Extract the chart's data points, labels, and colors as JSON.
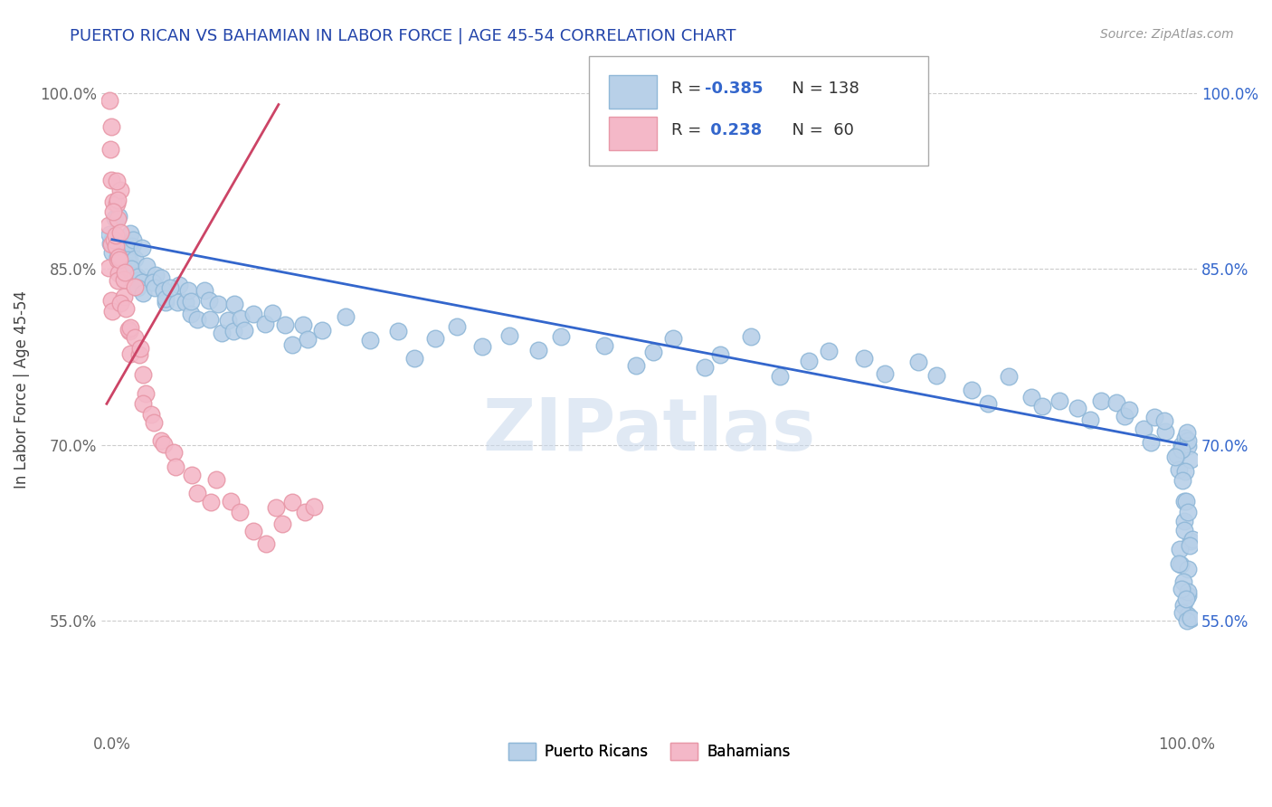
{
  "title": "PUERTO RICAN VS BAHAMIAN IN LABOR FORCE | AGE 45-54 CORRELATION CHART",
  "source_text": "Source: ZipAtlas.com",
  "ylabel": "In Labor Force | Age 45-54",
  "xlim": [
    -0.01,
    1.01
  ],
  "ylim": [
    0.455,
    1.04
  ],
  "yticks": [
    0.55,
    0.7,
    0.85,
    1.0
  ],
  "ytick_labels": [
    "55.0%",
    "70.0%",
    "85.0%",
    "100.0%"
  ],
  "xticks": [
    0.0,
    1.0
  ],
  "xtick_labels": [
    "0.0%",
    "100.0%"
  ],
  "watermark": "ZIPatlas",
  "blue_color": "#b8d0e8",
  "pink_color": "#f4b8c8",
  "blue_edge": "#90b8d8",
  "pink_edge": "#e898a8",
  "blue_line_color": "#3366cc",
  "pink_line_color": "#cc4466",
  "blue_line": {
    "x0": 0.0,
    "x1": 1.0,
    "y0": 0.875,
    "y1": 0.7
  },
  "pink_line": {
    "x0": -0.005,
    "x1": 0.155,
    "y0": 0.735,
    "y1": 0.99
  },
  "blue_scatter_x": [
    0.0,
    0.0,
    0.0,
    0.0,
    0.005,
    0.005,
    0.007,
    0.008,
    0.01,
    0.01,
    0.01,
    0.012,
    0.013,
    0.015,
    0.015,
    0.015,
    0.018,
    0.02,
    0.02,
    0.02,
    0.022,
    0.025,
    0.025,
    0.027,
    0.03,
    0.03,
    0.032,
    0.035,
    0.037,
    0.04,
    0.042,
    0.045,
    0.05,
    0.052,
    0.055,
    0.058,
    0.06,
    0.065,
    0.068,
    0.07,
    0.075,
    0.08,
    0.082,
    0.085,
    0.09,
    0.095,
    0.1,
    0.105,
    0.11,
    0.115,
    0.12,
    0.125,
    0.13,
    0.14,
    0.15,
    0.16,
    0.17,
    0.18,
    0.19,
    0.2,
    0.22,
    0.24,
    0.26,
    0.28,
    0.3,
    0.32,
    0.35,
    0.37,
    0.4,
    0.42,
    0.45,
    0.48,
    0.5,
    0.52,
    0.55,
    0.57,
    0.6,
    0.62,
    0.65,
    0.67,
    0.7,
    0.72,
    0.75,
    0.77,
    0.8,
    0.82,
    0.83,
    0.85,
    0.87,
    0.88,
    0.9,
    0.91,
    0.92,
    0.93,
    0.94,
    0.95,
    0.96,
    0.97,
    0.97,
    0.98,
    0.98,
    0.99,
    1.0,
    1.0,
    1.0,
    1.0,
    1.0,
    1.0,
    1.0,
    1.0,
    1.0,
    1.0,
    1.0,
    1.0,
    1.0,
    1.0,
    1.0,
    1.0,
    1.0,
    1.0,
    1.0,
    1.0,
    1.0,
    1.0,
    1.0,
    1.0,
    1.0,
    1.0,
    1.0,
    1.0,
    1.0,
    1.0,
    1.0,
    1.0,
    1.0,
    1.0
  ],
  "blue_scatter_y": [
    0.87,
    0.88,
    0.86,
    0.89,
    0.88,
    0.87,
    0.86,
    0.89,
    0.87,
    0.86,
    0.85,
    0.88,
    0.87,
    0.86,
    0.85,
    0.87,
    0.86,
    0.87,
    0.86,
    0.85,
    0.84,
    0.85,
    0.86,
    0.84,
    0.85,
    0.84,
    0.83,
    0.85,
    0.84,
    0.83,
    0.84,
    0.83,
    0.82,
    0.83,
    0.84,
    0.82,
    0.83,
    0.82,
    0.83,
    0.81,
    0.82,
    0.83,
    0.81,
    0.82,
    0.81,
    0.8,
    0.82,
    0.81,
    0.8,
    0.82,
    0.81,
    0.8,
    0.81,
    0.8,
    0.81,
    0.8,
    0.79,
    0.8,
    0.79,
    0.8,
    0.81,
    0.79,
    0.8,
    0.78,
    0.79,
    0.8,
    0.78,
    0.79,
    0.78,
    0.79,
    0.78,
    0.77,
    0.78,
    0.79,
    0.77,
    0.78,
    0.79,
    0.76,
    0.77,
    0.78,
    0.77,
    0.76,
    0.77,
    0.76,
    0.75,
    0.74,
    0.75,
    0.74,
    0.73,
    0.74,
    0.73,
    0.72,
    0.74,
    0.73,
    0.72,
    0.73,
    0.71,
    0.72,
    0.7,
    0.71,
    0.72,
    0.7,
    0.71,
    0.7,
    0.69,
    0.68,
    0.7,
    0.71,
    0.69,
    0.7,
    0.68,
    0.69,
    0.67,
    0.66,
    0.65,
    0.63,
    0.62,
    0.61,
    0.6,
    0.59,
    0.63,
    0.62,
    0.61,
    0.64,
    0.6,
    0.58,
    0.57,
    0.56,
    0.55,
    0.57,
    0.56,
    0.58,
    0.55,
    0.57,
    0.56,
    0.55
  ],
  "pink_scatter_x": [
    0.0,
    0.0,
    0.0,
    0.0,
    0.0,
    0.0,
    0.0,
    0.0,
    0.0,
    0.0,
    0.002,
    0.002,
    0.003,
    0.003,
    0.003,
    0.004,
    0.004,
    0.005,
    0.005,
    0.006,
    0.007,
    0.007,
    0.008,
    0.008,
    0.009,
    0.01,
    0.01,
    0.011,
    0.012,
    0.012,
    0.013,
    0.015,
    0.015,
    0.016,
    0.018,
    0.02,
    0.022,
    0.025,
    0.027,
    0.03,
    0.032,
    0.035,
    0.04,
    0.045,
    0.05,
    0.055,
    0.06,
    0.07,
    0.08,
    0.09,
    0.1,
    0.11,
    0.12,
    0.13,
    0.14,
    0.15,
    0.16,
    0.17,
    0.18,
    0.19
  ],
  "pink_scatter_y": [
    0.99,
    0.97,
    0.95,
    0.93,
    0.91,
    0.89,
    0.87,
    0.85,
    0.83,
    0.81,
    0.9,
    0.88,
    0.92,
    0.89,
    0.86,
    0.91,
    0.87,
    0.93,
    0.88,
    0.85,
    0.9,
    0.86,
    0.88,
    0.84,
    0.86,
    0.84,
    0.82,
    0.85,
    0.83,
    0.8,
    0.82,
    0.84,
    0.8,
    0.78,
    0.8,
    0.79,
    0.77,
    0.78,
    0.76,
    0.75,
    0.74,
    0.73,
    0.72,
    0.71,
    0.7,
    0.69,
    0.68,
    0.67,
    0.66,
    0.65,
    0.67,
    0.65,
    0.64,
    0.63,
    0.62,
    0.65,
    0.63,
    0.65,
    0.64,
    0.65
  ]
}
